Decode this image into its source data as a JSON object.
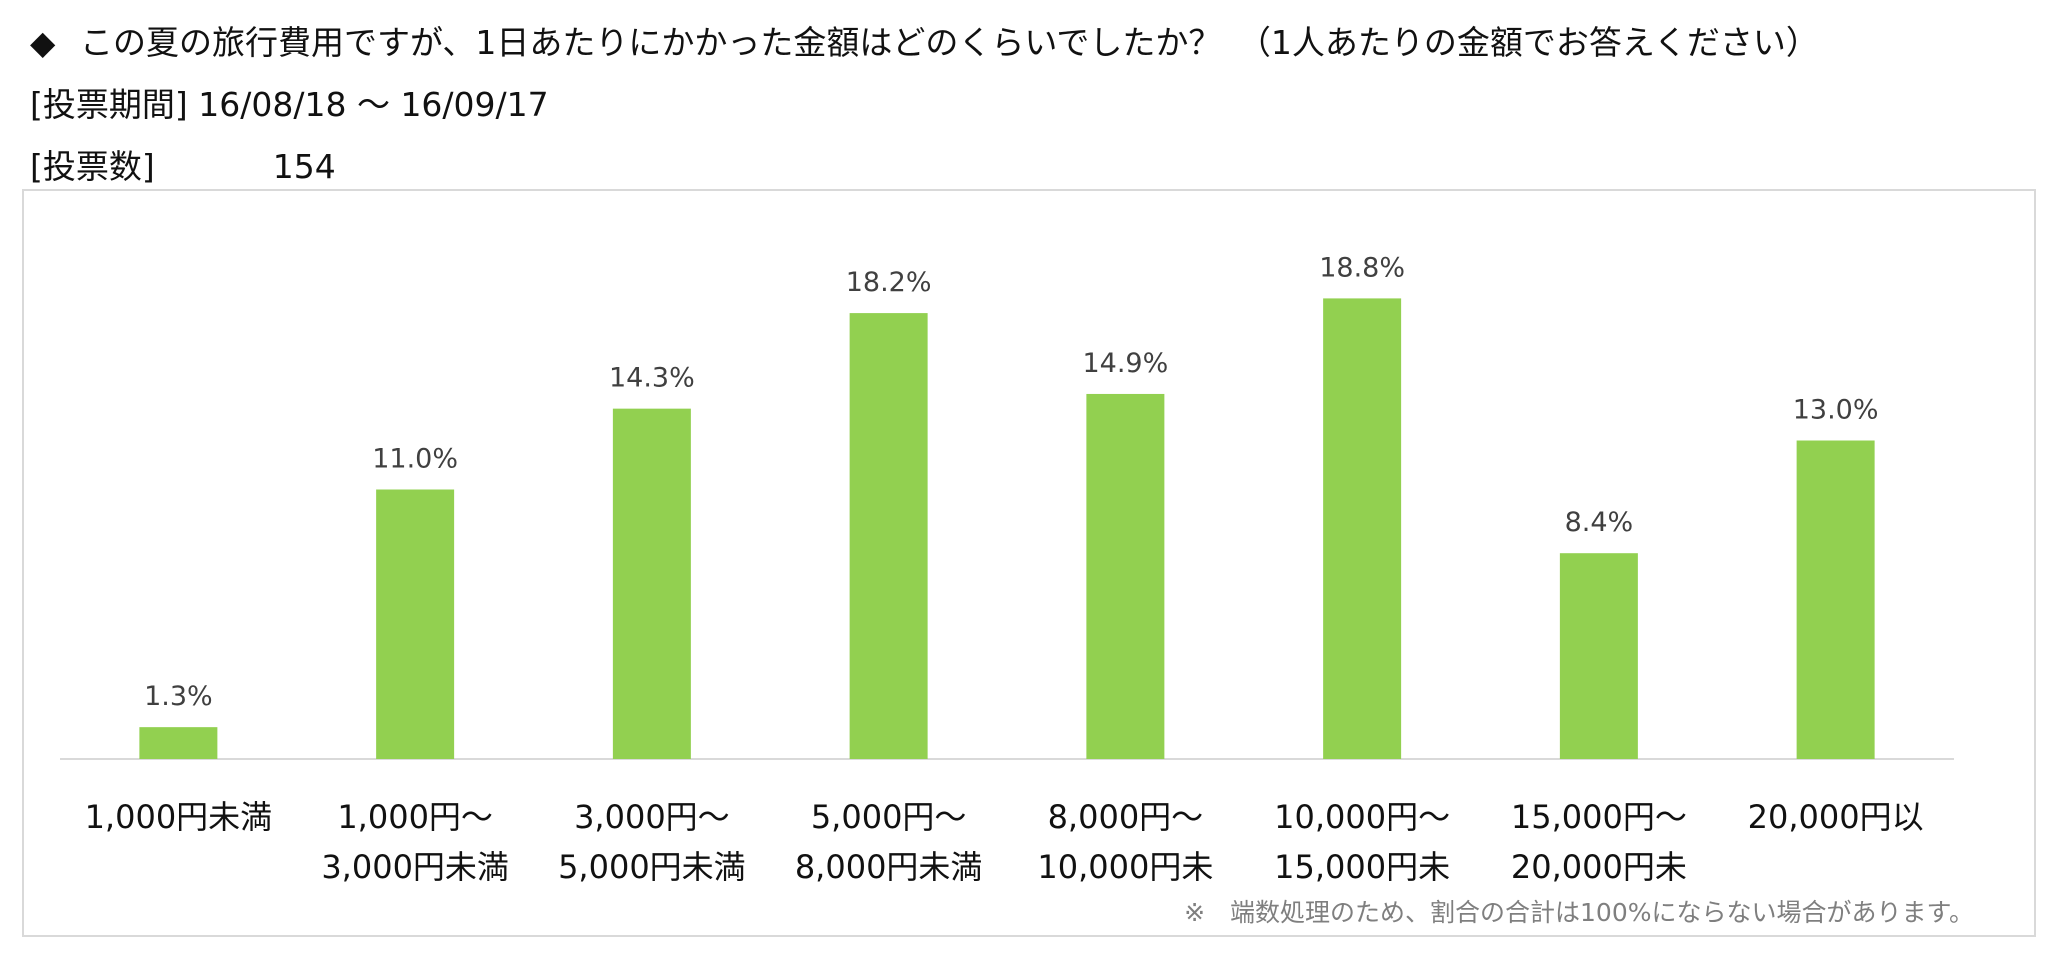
{
  "header": {
    "bullet": "◆",
    "question": "この夏の旅行費用ですが、1日あたりにかかった金額はどのくらいでしたか？　（1人あたりの金額でお答えください）",
    "period_label": "[投票期間]",
    "period_value": "16/08/18 ～ 16/09/17",
    "count_label": "[投票数]",
    "count_value": "154"
  },
  "chart_data": {
    "type": "bar",
    "categories": [
      [
        "1,000円未満"
      ],
      [
        "1,000円～",
        "3,000円未満"
      ],
      [
        "3,000円～",
        "5,000円未満"
      ],
      [
        "5,000円～",
        "8,000円未満"
      ],
      [
        "8,000円～",
        "10,000円未"
      ],
      [
        "10,000円～",
        "15,000円未"
      ],
      [
        "15,000円～",
        "20,000円未"
      ],
      [
        "20,000円以"
      ]
    ],
    "values": [
      1.3,
      11.0,
      14.3,
      18.2,
      14.9,
      18.8,
      8.4,
      13.0
    ],
    "value_labels": [
      "1.3%",
      "11.0%",
      "14.3%",
      "18.2%",
      "14.9%",
      "18.8%",
      "8.4%",
      "13.0%"
    ],
    "unit": "%",
    "ylim": [
      0,
      20
    ],
    "grid": false,
    "bar_color": "#92d050",
    "footnote": "※　端数処理のため、割合の合計は100%にならない場合があります。"
  }
}
